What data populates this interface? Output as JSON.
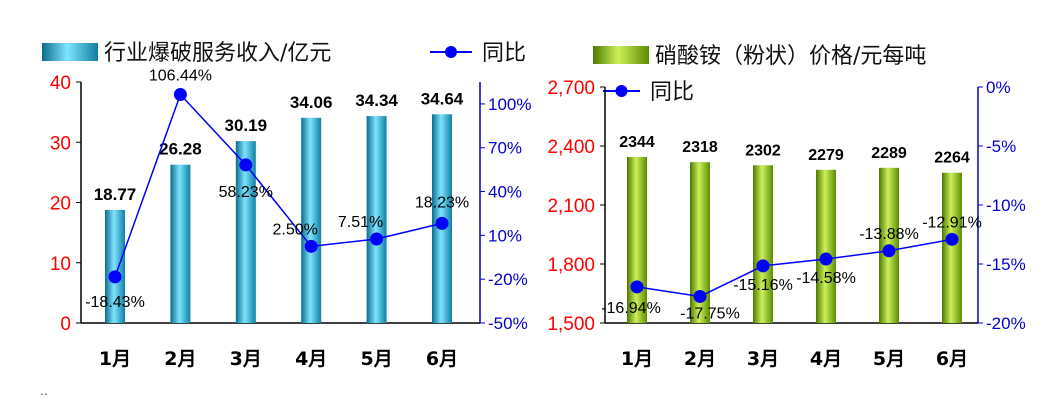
{
  "chart_data": [
    {
      "type": "bar+line",
      "legend": {
        "bar": "行业爆破服务收入/亿元",
        "line": "同比",
        "placement": "top"
      },
      "categories": [
        "1月",
        "2月",
        "3月",
        "4月",
        "5月",
        "6月"
      ],
      "bar_series": {
        "name": "行业爆破服务收入/亿元",
        "values": [
          18.77,
          26.28,
          30.19,
          34.06,
          34.34,
          34.64
        ],
        "labels": [
          "18.77",
          "26.28",
          "30.19",
          "34.06",
          "34.34",
          "34.64"
        ]
      },
      "line_series": {
        "name": "同比",
        "values": [
          -18.43,
          106.44,
          58.23,
          2.5,
          7.51,
          18.23
        ],
        "labels": [
          "-18.43%",
          "106.44%",
          "58.23%",
          "2.50%",
          "7.51%",
          "18.23%"
        ]
      },
      "left_axis": {
        "ylim": [
          0,
          40
        ],
        "ticks": [
          0,
          10,
          20,
          30,
          40
        ],
        "tick_labels": [
          "0",
          "10",
          "20",
          "30",
          "40"
        ],
        "color": "#ff0000"
      },
      "right_axis": {
        "ylim": [
          -50,
          115
        ],
        "ticks": [
          -50,
          -20,
          10,
          40,
          70,
          100
        ],
        "tick_labels": [
          "-50%",
          "-20%",
          "10%",
          "40%",
          "70%",
          "100%"
        ],
        "color": "#0000cc"
      },
      "grid": false
    },
    {
      "type": "bar+line",
      "legend": {
        "bar": "硝酸铵（粉状）价格/元每吨",
        "line": "同比",
        "placement": "top"
      },
      "categories": [
        "1月",
        "2月",
        "3月",
        "4月",
        "5月",
        "6月"
      ],
      "bar_series": {
        "name": "硝酸铵（粉状）价格/元每吨",
        "values": [
          2344,
          2318,
          2302,
          2279,
          2289,
          2264
        ],
        "labels": [
          "2344",
          "2318",
          "2302",
          "2279",
          "2289",
          "2264"
        ]
      },
      "line_series": {
        "name": "同比",
        "values": [
          -16.94,
          -17.75,
          -15.16,
          -14.58,
          -13.88,
          -12.91
        ],
        "labels": [
          "-16.94%",
          "-17.75%",
          "-15.16%",
          "-14.58%",
          "-13.88%",
          "-12.91%"
        ]
      },
      "left_axis": {
        "ylim": [
          1500,
          2700
        ],
        "ticks": [
          1500,
          1800,
          2100,
          2400,
          2700
        ],
        "tick_labels": [
          "1,500",
          "1,800",
          "2,100",
          "2,400",
          "2,700"
        ],
        "color": "#ff0000"
      },
      "right_axis": {
        "ylim": [
          -20,
          0
        ],
        "ticks": [
          -20,
          -15,
          -10,
          -5,
          0
        ],
        "tick_labels": [
          "-20%",
          "-15%",
          "-10%",
          "-5%",
          "0%"
        ],
        "color": "#0000cc"
      },
      "grid": false
    }
  ],
  "colors": {
    "bar_left": "#1ea9cf",
    "bar_right": "#80b400",
    "line": "#0000ff",
    "left_axis": "#ff0000",
    "right_axis": "#0000cc"
  },
  "footer_text": ".."
}
